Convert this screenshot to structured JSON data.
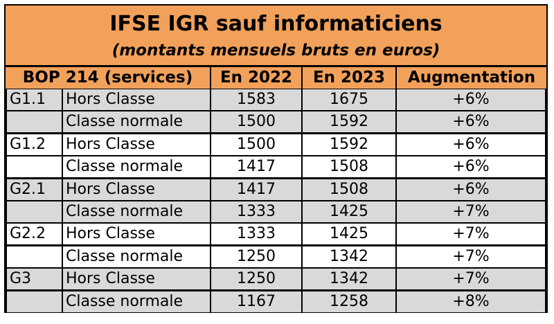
{
  "title": {
    "line1": "IFSE IGR sauf informaticiens",
    "line2": "(montants mensuels bruts en euros)"
  },
  "headers": {
    "bop": "BOP 214 (services)",
    "y2022": "En 2022",
    "y2023": "En 2023",
    "aug": "Augmentation"
  },
  "rows": [
    {
      "grade": "G1.1",
      "classe": "Hors Classe",
      "v2022": "1583",
      "v2023": "1675",
      "aug": "+6%"
    },
    {
      "grade": "",
      "classe": "Classe normale",
      "v2022": "1500",
      "v2023": "1592",
      "aug": "+6%"
    },
    {
      "grade": "G1.2",
      "classe": "Hors Classe",
      "v2022": "1500",
      "v2023": "1592",
      "aug": "+6%"
    },
    {
      "grade": "",
      "classe": "Classe normale",
      "v2022": "1417",
      "v2023": "1508",
      "aug": "+6%"
    },
    {
      "grade": "G2.1",
      "classe": "Hors Classe",
      "v2022": "1417",
      "v2023": "1508",
      "aug": "+6%"
    },
    {
      "grade": "",
      "classe": "Classe normale",
      "v2022": "1333",
      "v2023": "1425",
      "aug": "+7%"
    },
    {
      "grade": "G2.2",
      "classe": "Hors Classe",
      "v2022": "1333",
      "v2023": "1425",
      "aug": "+7%"
    },
    {
      "grade": "",
      "classe": "Classe normale",
      "v2022": "1250",
      "v2023": "1342",
      "aug": "+7%"
    },
    {
      "grade": "G3",
      "classe": "Hors Classe",
      "v2022": "1250",
      "v2023": "1342",
      "aug": "+7%"
    },
    {
      "grade": "",
      "classe": "Classe normale",
      "v2022": "1167",
      "v2023": "1258",
      "aug": "+8%"
    }
  ],
  "colors": {
    "header_bg": "#f2a15a",
    "row_grey": "#d9d9d9",
    "row_white": "#ffffff",
    "border": "#000000"
  }
}
